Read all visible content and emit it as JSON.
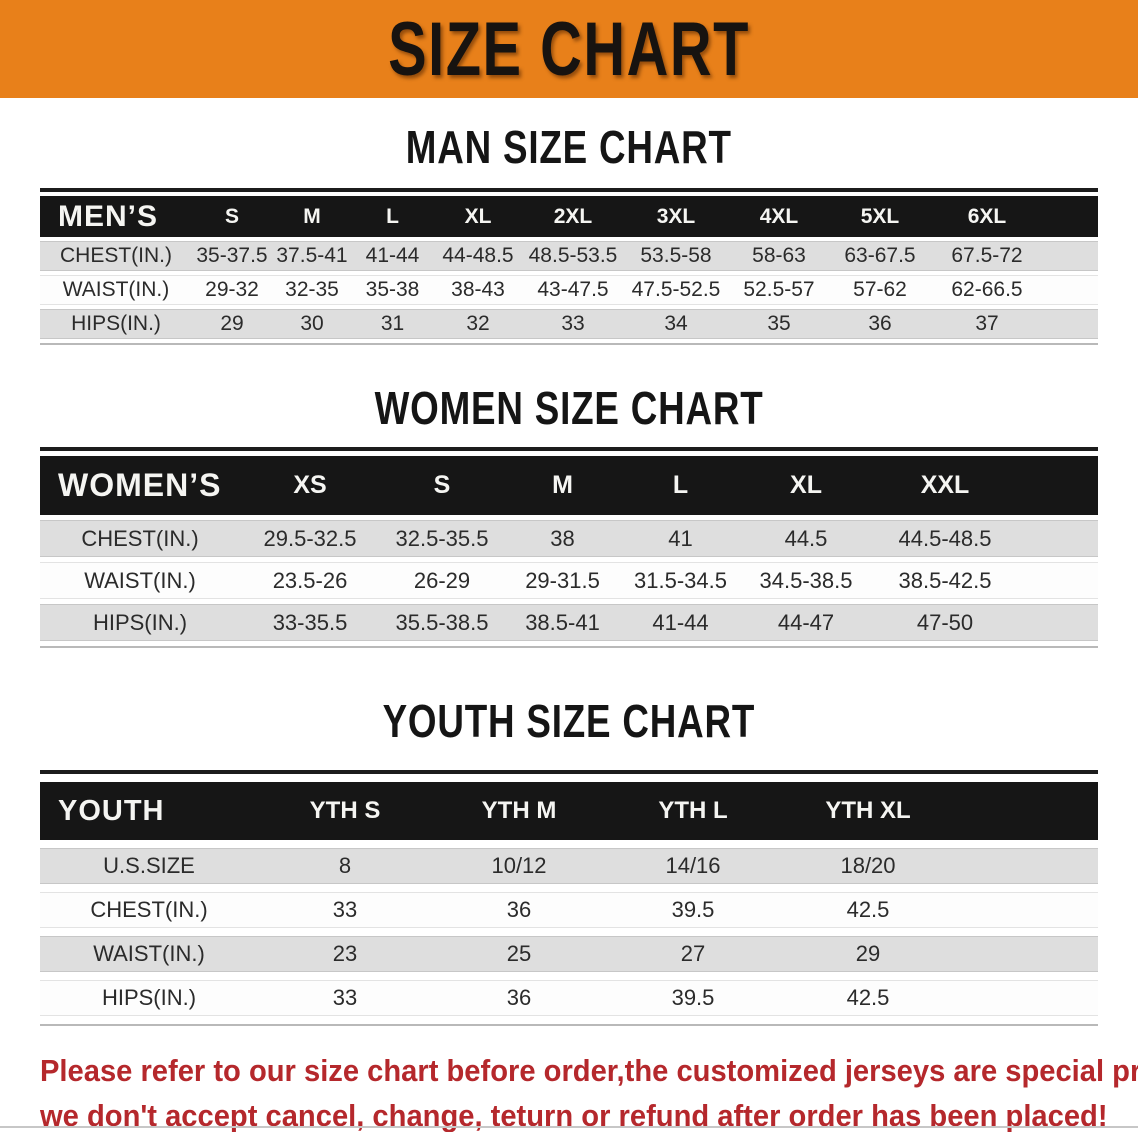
{
  "banner": {
    "title": "SIZE CHART"
  },
  "theme": {
    "banner_bg": "#E8801A",
    "header_bg": "#161616",
    "row_gray": "#DEDEDE",
    "row_white": "#FDFDFD",
    "text_dark": "#2B2B2B",
    "disclaimer_red": "#B5282C",
    "page_bg": "#FFFFFF"
  },
  "sections": [
    {
      "key": "men",
      "heading": "MAN SIZE CHART",
      "table": {
        "header_label": "MEN’S",
        "columns": [
          "S",
          "M",
          "L",
          "XL",
          "2XL",
          "3XL",
          "4XL",
          "5XL",
          "6XL"
        ],
        "rows": [
          {
            "label": "CHEST(IN.)",
            "values": [
              "35-37.5",
              "37.5-41",
              "41-44",
              "44-48.5",
              "48.5-53.5",
              "53.5-58",
              "58-63",
              "63-67.5",
              "67.5-72"
            ]
          },
          {
            "label": "WAIST(IN.)",
            "values": [
              "29-32",
              "32-35",
              "35-38",
              "38-43",
              "43-47.5",
              "47.5-52.5",
              "52.5-57",
              "57-62",
              "62-66.5"
            ]
          },
          {
            "label": "HIPS(IN.)",
            "values": [
              "29",
              "30",
              "31",
              "32",
              "33",
              "34",
              "35",
              "36",
              "37"
            ]
          }
        ]
      }
    },
    {
      "key": "women",
      "heading": "WOMEN SIZE CHART",
      "table": {
        "header_label": "WOMEN’S",
        "columns": [
          "XS",
          "S",
          "M",
          "L",
          "XL",
          "XXL"
        ],
        "rows": [
          {
            "label": "CHEST(IN.)",
            "values": [
              "29.5-32.5",
              "32.5-35.5",
              "38",
              "41",
              "44.5",
              "44.5-48.5"
            ]
          },
          {
            "label": "WAIST(IN.)",
            "values": [
              "23.5-26",
              "26-29",
              "29-31.5",
              "31.5-34.5",
              "34.5-38.5",
              "38.5-42.5"
            ]
          },
          {
            "label": "HIPS(IN.)",
            "values": [
              "33-35.5",
              "35.5-38.5",
              "38.5-41",
              "41-44",
              "44-47",
              "47-50"
            ]
          }
        ]
      }
    },
    {
      "key": "youth",
      "heading": "YOUTH SIZE CHART",
      "table": {
        "header_label": "YOUTH",
        "columns": [
          "YTH S",
          "YTH M",
          "YTH L",
          "YTH XL"
        ],
        "rows": [
          {
            "label": "U.S.SIZE",
            "values": [
              "8",
              "10/12",
              "14/16",
              "18/20"
            ]
          },
          {
            "label": "CHEST(IN.)",
            "values": [
              "33",
              "36",
              "39.5",
              "42.5"
            ]
          },
          {
            "label": "WAIST(IN.)",
            "values": [
              "23",
              "25",
              "27",
              "29"
            ]
          },
          {
            "label": "HIPS(IN.)",
            "values": [
              "33",
              "36",
              "39.5",
              "42.5"
            ]
          }
        ]
      }
    }
  ],
  "disclaimer": {
    "lines": [
      "Please refer to our size chart before order,the customized jerseys are special products,",
      "we don't accept cancel, change, teturn or refund after order has been placed!"
    ]
  }
}
